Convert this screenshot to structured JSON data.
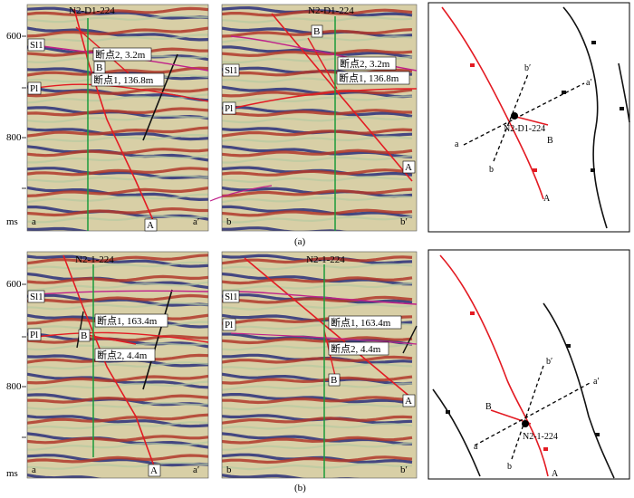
{
  "colors": {
    "fault_red": "#e31b23",
    "fault_black": "#111111",
    "well_green": "#1a9b3a",
    "horizon_magenta": "#c0208a",
    "trough_blue": "#2a2f7a",
    "peak_red": "#b2382a",
    "background_tan": "#d8cfa6",
    "background_green": "#b7c9a1"
  },
  "panel_a": {
    "caption": "(a)",
    "time_axis": {
      "unit": "ms",
      "ticks": [
        "600",
        "800"
      ]
    },
    "section_1": {
      "well": "N2-D1-224",
      "horizons": [
        "Sl1",
        "Pl"
      ],
      "breakpoint_2": "断点2, 3.2m",
      "breakpoint_1": "断点1, 136.8m",
      "fault_A": "A",
      "fault_B": "B",
      "end_left": "a",
      "end_right": "a′"
    },
    "section_2": {
      "well": "N2-D1-224",
      "horizons": [
        "Sl1",
        "Pl"
      ],
      "breakpoint_2": "断点2, 3.2m",
      "breakpoint_1": "断点1, 136.8m",
      "fault_A": "A",
      "fault_B": "B",
      "end_left": "b",
      "end_right": "b′"
    },
    "map": {
      "well": "N2-D1-224",
      "fault_A": "A",
      "fault_B": "B",
      "line_a_start": "a",
      "line_a_end": "a′",
      "line_b_start": "b",
      "line_b_end": "b′"
    }
  },
  "panel_b": {
    "caption": "(b)",
    "time_axis": {
      "unit": "ms",
      "ticks": [
        "600",
        "800"
      ]
    },
    "section_1": {
      "well": "N2-1-224",
      "horizons": [
        "Sl1",
        "Pl"
      ],
      "breakpoint_1": "断点1, 163.4m",
      "breakpoint_2": "断点2, 4.4m",
      "fault_A": "A",
      "fault_B": "B",
      "end_left": "a",
      "end_right": "a′"
    },
    "section_2": {
      "well": "N2-1-224",
      "horizons": [
        "Sl1",
        "Pl"
      ],
      "breakpoint_1": "断点1, 163.4m",
      "breakpoint_2": "断点2, 4.4m",
      "fault_A": "A",
      "fault_B": "B",
      "end_left": "b",
      "end_right": "b′"
    },
    "map": {
      "well": "N2-1-224",
      "fault_A": "A",
      "fault_B": "B",
      "line_a_start": "a",
      "line_a_end": "a′",
      "line_b_start": "b",
      "line_b_end": "b′"
    }
  }
}
